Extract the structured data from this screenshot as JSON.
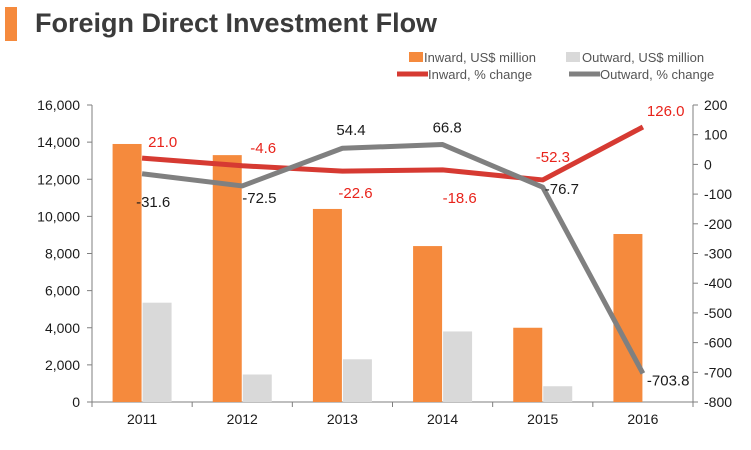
{
  "chart_data": {
    "type": "bar",
    "title": "Foreign Direct Investment Flow",
    "categories": [
      "2011",
      "2012",
      "2013",
      "2014",
      "2015",
      "2016"
    ],
    "bar_series": [
      {
        "name": "Inward, US$ million",
        "color": "#f58a3d",
        "values": [
          13900,
          13300,
          10400,
          8400,
          4000,
          9050
        ]
      },
      {
        "name": "Outward, US$ million",
        "color": "#d9d9d9",
        "values": [
          5350,
          1480,
          2300,
          3800,
          850,
          0
        ]
      }
    ],
    "line_series": [
      {
        "name": "Inward, % change",
        "color": "#d63a32",
        "label_color": "#e8231b",
        "values": [
          21.0,
          -4.6,
          -22.6,
          -18.6,
          -52.3,
          126.0
        ],
        "labels": [
          "21.0",
          "-4.6",
          "-22.6",
          "-18.6",
          "-52.3",
          "126.0"
        ]
      },
      {
        "name": "Outward, % change",
        "color": "#808080",
        "label_color": "#1a1a1a",
        "values": [
          -31.6,
          -72.5,
          54.4,
          66.8,
          -76.7,
          -703.8
        ],
        "labels": [
          "-31.6",
          "-72.5",
          "54.4",
          "66.8",
          "-76.7",
          "-703.8"
        ]
      }
    ],
    "y_left": {
      "min": 0,
      "max": 16000,
      "ticks": [
        "0",
        "2,000",
        "4,000",
        "6,000",
        "8,000",
        "10,000",
        "12,000",
        "14,000",
        "16,000"
      ]
    },
    "y_right": {
      "min": -800,
      "max": 200,
      "ticks": [
        "200",
        "100",
        "0",
        "-100",
        "-200",
        "-300",
        "-400",
        "-500",
        "-600",
        "-700",
        "-800"
      ]
    },
    "legend_position": "top-right"
  }
}
